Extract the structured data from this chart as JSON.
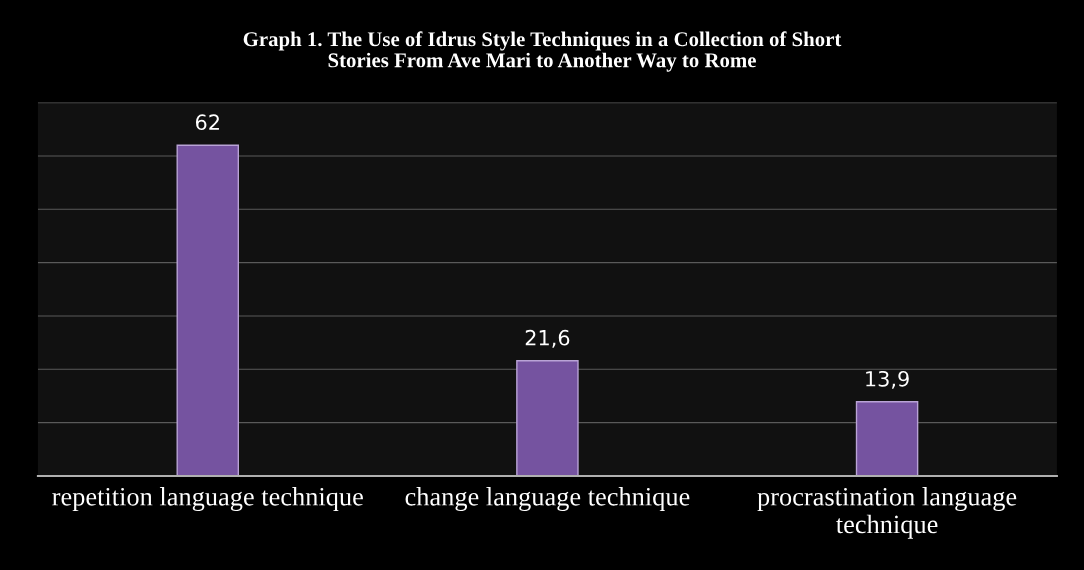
{
  "chart_data": {
    "type": "bar",
    "title": "Graph 1. The Use of Idrus Style Techniques in a Collection of Short\nStories From Ave Mari to Another Way to Rome",
    "categories": [
      "repetition language technique",
      "change language technique",
      "procrastination language\ntechnique"
    ],
    "values": [
      62,
      21.6,
      13.9
    ],
    "value_labels": [
      "62",
      "21,6",
      "13,9"
    ],
    "color": "#7553a0",
    "ylim": [
      0,
      70
    ],
    "yticks": [
      {
        "value": 0,
        "label": null
      },
      {
        "value": 10,
        "label": null
      },
      {
        "value": 20,
        "label": null
      },
      {
        "value": 30,
        "label": null
      },
      {
        "value": 40,
        "label": null
      },
      {
        "value": 50,
        "label": null
      },
      {
        "value": 60,
        "label": null
      },
      {
        "value": 70,
        "label": null
      }
    ],
    "grid": "y",
    "tick_labels": "x"
  }
}
